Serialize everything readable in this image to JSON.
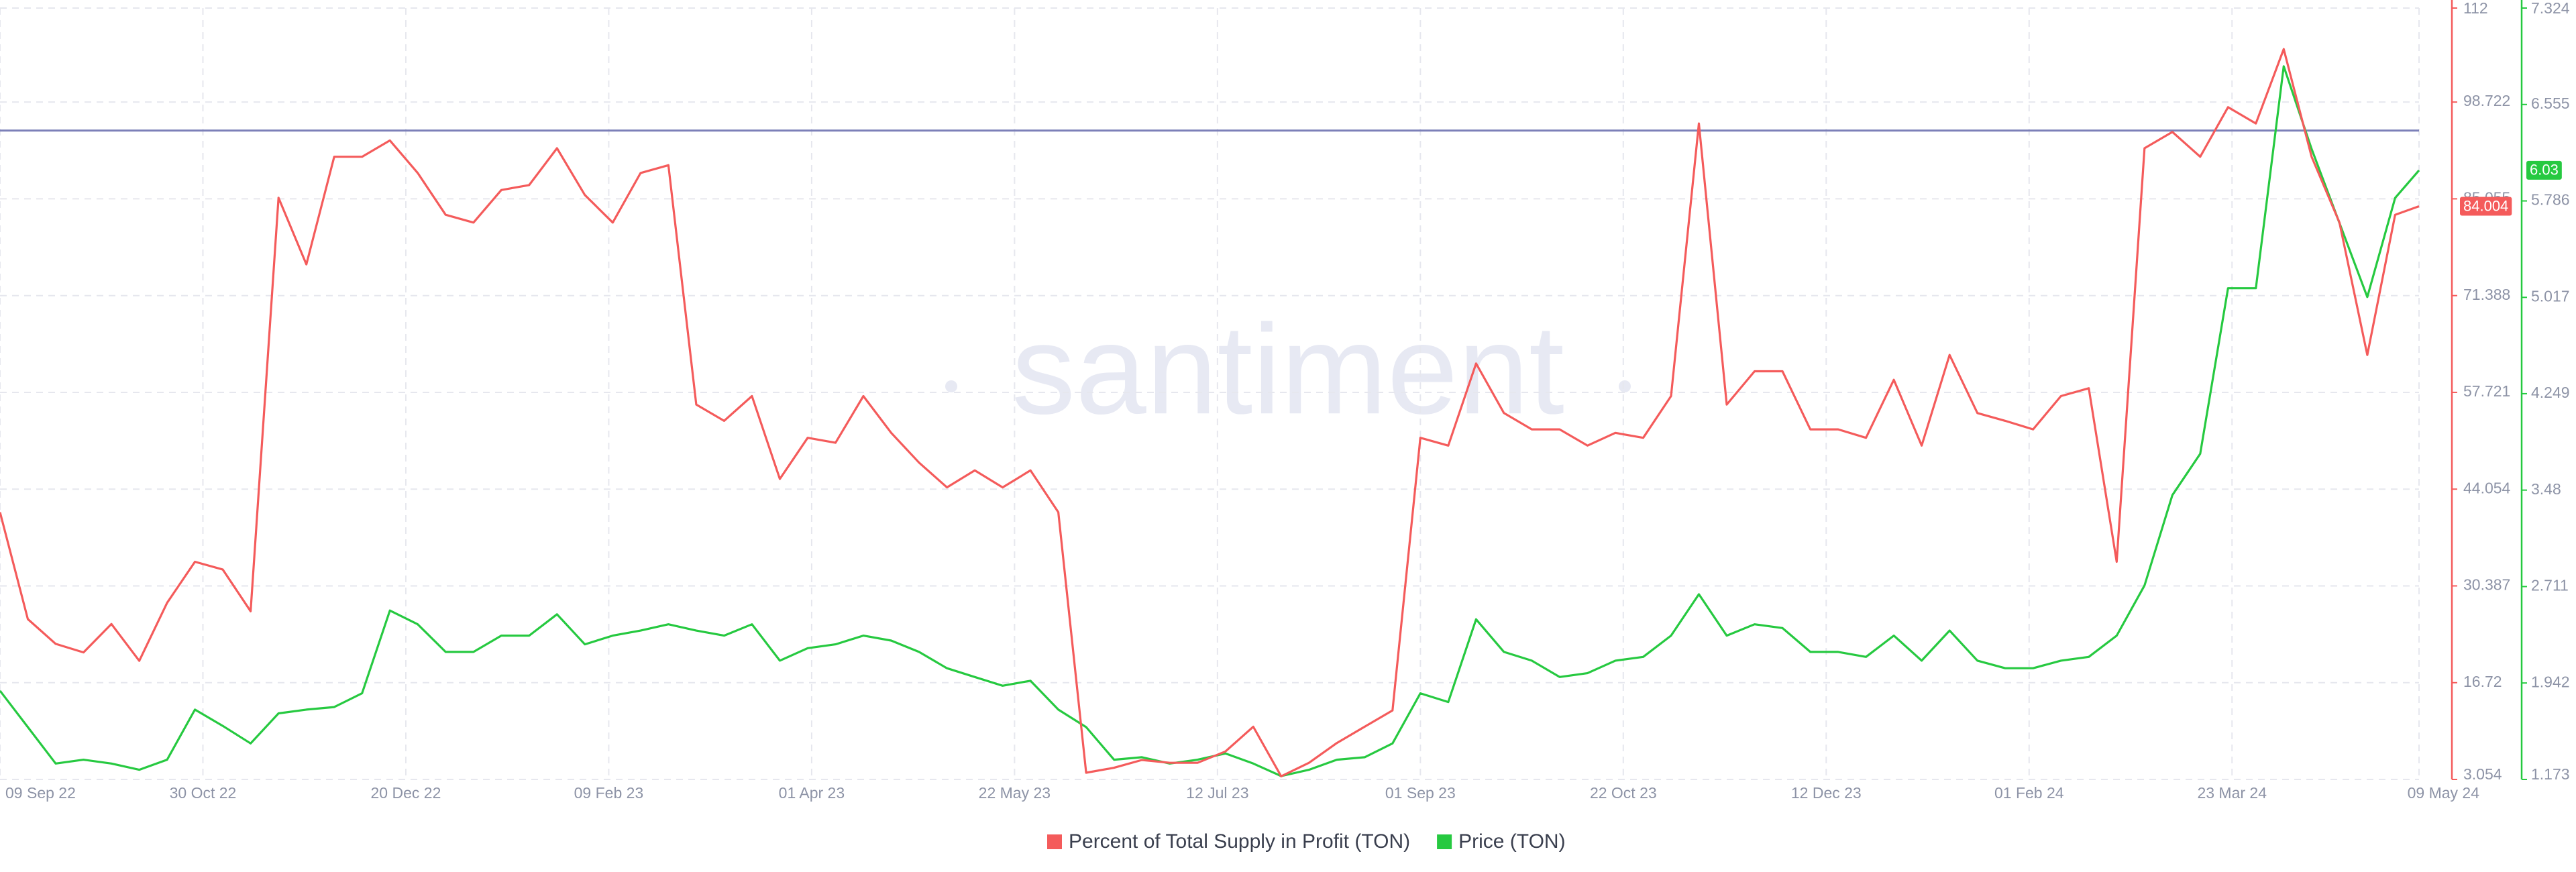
{
  "chart_data": {
    "type": "line",
    "watermark": "santiment",
    "x": [
      "2022-09-09",
      "2022-09-16",
      "2022-09-23",
      "2022-09-30",
      "2022-10-07",
      "2022-10-14",
      "2022-10-21",
      "2022-10-28",
      "2022-11-04",
      "2022-11-11",
      "2022-11-18",
      "2022-11-25",
      "2022-12-02",
      "2022-12-09",
      "2022-12-16",
      "2022-12-23",
      "2022-12-30",
      "2023-01-06",
      "2023-01-13",
      "2023-01-20",
      "2023-01-27",
      "2023-02-03",
      "2023-02-10",
      "2023-02-17",
      "2023-02-24",
      "2023-03-03",
      "2023-03-10",
      "2023-03-17",
      "2023-03-24",
      "2023-03-31",
      "2023-04-07",
      "2023-04-14",
      "2023-04-21",
      "2023-04-28",
      "2023-05-05",
      "2023-05-12",
      "2023-05-19",
      "2023-05-26",
      "2023-06-02",
      "2023-06-09",
      "2023-06-16",
      "2023-06-23",
      "2023-06-30",
      "2023-07-07",
      "2023-07-14",
      "2023-07-21",
      "2023-07-28",
      "2023-08-04",
      "2023-08-11",
      "2023-08-18",
      "2023-08-25",
      "2023-09-01",
      "2023-09-08",
      "2023-09-15",
      "2023-09-22",
      "2023-09-29",
      "2023-10-06",
      "2023-10-13",
      "2023-10-20",
      "2023-10-27",
      "2023-11-03",
      "2023-11-10",
      "2023-11-17",
      "2023-11-24",
      "2023-12-01",
      "2023-12-08",
      "2023-12-15",
      "2023-12-22",
      "2023-12-29",
      "2024-01-05",
      "2024-01-12",
      "2024-01-19",
      "2024-01-26",
      "2024-02-02",
      "2024-02-09",
      "2024-02-16",
      "2024-02-23",
      "2024-03-01",
      "2024-03-08",
      "2024-03-15",
      "2024-03-22",
      "2024-03-29",
      "2024-04-05",
      "2024-04-12",
      "2024-04-19",
      "2024-04-26",
      "2024-05-03",
      "2024-05-09"
    ],
    "series": [
      {
        "name": "Percent of Total Supply in Profit (TON)",
        "color": "#f45b5b",
        "axis": "y",
        "values": [
          40.8,
          25.7,
          22.2,
          21.0,
          25.0,
          19.8,
          28.0,
          33.8,
          32.7,
          26.8,
          85.2,
          75.8,
          91.0,
          91.0,
          93.3,
          88.7,
          82.8,
          81.7,
          86.3,
          87.0,
          92.2,
          85.6,
          81.7,
          88.7,
          89.8,
          56.0,
          53.7,
          57.2,
          45.5,
          51.3,
          50.6,
          57.2,
          52.0,
          47.8,
          44.3,
          46.7,
          44.3,
          46.7,
          40.8,
          4.0,
          4.7,
          5.8,
          5.4,
          5.4,
          7.0,
          10.5,
          3.5,
          5.4,
          8.2,
          10.5,
          12.8,
          51.3,
          50.2,
          61.8,
          54.8,
          52.5,
          52.5,
          50.2,
          52.0,
          51.3,
          57.2,
          95.7,
          56.0,
          60.7,
          60.7,
          52.5,
          52.5,
          51.3,
          59.5,
          50.2,
          63.0,
          54.8,
          53.7,
          52.5,
          57.2,
          58.3,
          33.8,
          92.2,
          94.5,
          91.0,
          98.0,
          95.7,
          106.2,
          91.0,
          81.7,
          63.0,
          82.8,
          84.004
        ]
      },
      {
        "name": "Price (TON)",
        "color": "#26c940",
        "axis": "y2",
        "values": [
          1.88,
          1.59,
          1.3,
          1.33,
          1.3,
          1.25,
          1.33,
          1.73,
          1.6,
          1.46,
          1.7,
          1.73,
          1.75,
          1.86,
          2.52,
          2.41,
          2.19,
          2.19,
          2.32,
          2.32,
          2.49,
          2.25,
          2.32,
          2.36,
          2.41,
          2.36,
          2.32,
          2.41,
          2.12,
          2.22,
          2.25,
          2.32,
          2.28,
          2.19,
          2.06,
          1.99,
          1.92,
          1.96,
          1.73,
          1.59,
          1.33,
          1.35,
          1.3,
          1.33,
          1.38,
          1.3,
          1.2,
          1.25,
          1.33,
          1.35,
          1.46,
          1.86,
          1.79,
          2.45,
          2.19,
          2.12,
          1.99,
          2.02,
          2.12,
          2.15,
          2.32,
          2.65,
          2.32,
          2.41,
          2.38,
          2.19,
          2.19,
          2.15,
          2.32,
          2.12,
          2.36,
          2.12,
          2.06,
          2.06,
          2.12,
          2.15,
          2.32,
          2.72,
          3.44,
          3.77,
          5.09,
          5.09,
          6.86,
          6.2,
          5.61,
          5.02,
          5.81,
          6.03
        ]
      }
    ],
    "xlim": [
      "2022-09-09",
      "2024-05-09"
    ],
    "xticks": [
      {
        "value": "2022-09-09",
        "label": "09 Sep 22"
      },
      {
        "value": "2022-10-30",
        "label": "30 Oct 22"
      },
      {
        "value": "2022-12-20",
        "label": "20 Dec 22"
      },
      {
        "value": "2023-02-09",
        "label": "09 Feb 23"
      },
      {
        "value": "2023-04-01",
        "label": "01 Apr 23"
      },
      {
        "value": "2023-05-22",
        "label": "22 May 23"
      },
      {
        "value": "2023-07-12",
        "label": "12 Jul 23"
      },
      {
        "value": "2023-09-01",
        "label": "01 Sep 23"
      },
      {
        "value": "2023-10-22",
        "label": "22 Oct 23"
      },
      {
        "value": "2023-12-12",
        "label": "12 Dec 23"
      },
      {
        "value": "2024-02-01",
        "label": "01 Feb 24"
      },
      {
        "value": "2024-03-23",
        "label": "23 Mar 24"
      },
      {
        "value": "2024-05-09",
        "label": "09 May 24"
      }
    ],
    "ylim": [
      3.054,
      112
    ],
    "yticks": [
      3.054,
      16.72,
      30.387,
      44.054,
      57.721,
      71.388,
      85.055,
      98.722,
      112
    ],
    "y2lim": [
      1.173,
      7.324
    ],
    "y2ticks": [
      1.173,
      1.942,
      2.711,
      3.48,
      4.249,
      5.017,
      5.786,
      6.555,
      7.324
    ],
    "reference_line": 94.7,
    "reference_line_color": "#7c80b8",
    "grid": true,
    "legend": "bottom"
  }
}
